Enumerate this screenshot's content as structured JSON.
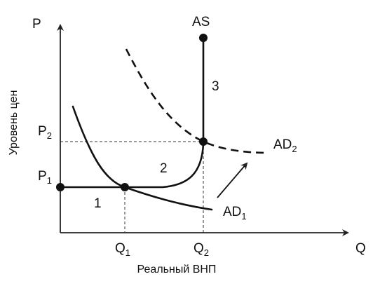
{
  "axes": {
    "y_symbol": "P",
    "x_symbol": "Q",
    "y_label": "Уровень цен",
    "x_label": "Реальный ВНП"
  },
  "levels": {
    "p1": {
      "base": "P",
      "sub": "1"
    },
    "p2": {
      "base": "P",
      "sub": "2"
    },
    "q1": {
      "base": "Q",
      "sub": "1"
    },
    "q2": {
      "base": "Q",
      "sub": "2"
    }
  },
  "curves": {
    "as": "AS",
    "ad1": {
      "base": "AD",
      "sub": "1"
    },
    "ad2": {
      "base": "AD",
      "sub": "2"
    }
  },
  "segments": {
    "one": "1",
    "two": "2",
    "three": "3"
  }
}
